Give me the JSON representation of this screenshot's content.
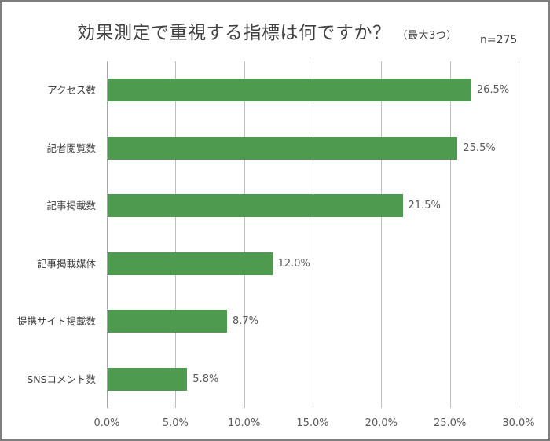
{
  "chart": {
    "title": "効果測定で重視する指標は何ですか？",
    "subtitle": "（最大3つ）",
    "n_label": "n=275"
  },
  "chart_data": {
    "type": "bar",
    "orientation": "horizontal",
    "title": "効果測定で重視する指標は何ですか？（最大3つ）",
    "annotation": "n=275",
    "categories": [
      "アクセス数",
      "記者閲覧数",
      "記事掲載数",
      "記事掲載媒体",
      "提携サイト掲載数",
      "SNSコメント数"
    ],
    "values": [
      26.5,
      25.5,
      21.5,
      12.0,
      8.7,
      5.8
    ],
    "value_labels": [
      "26.5%",
      "25.5%",
      "21.5%",
      "12.0%",
      "8.7%",
      "5.8%"
    ],
    "xlabel": "",
    "ylabel": "",
    "xlim": [
      0,
      30
    ],
    "x_ticks": [
      "0.0%",
      "5.0%",
      "10.0%",
      "15.0%",
      "20.0%",
      "25.0%",
      "30.0%"
    ],
    "grid": "vertical",
    "legend": null,
    "bar_color": "#4e9a4e"
  }
}
